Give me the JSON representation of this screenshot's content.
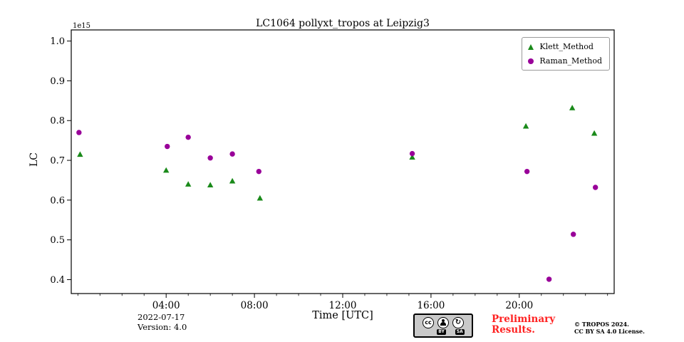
{
  "chart_data": {
    "type": "scatter",
    "title": "LC1064 pollyxt_tropos at Leipzig3",
    "xlabel": "Time [UTC]",
    "ylabel": "LC",
    "y_offset_label": "1e15",
    "xlim": [
      -0.3,
      24.3
    ],
    "ylim": [
      0.365,
      1.028
    ],
    "grid": false,
    "legend_position": "upper right",
    "x_major_ticks": [
      {
        "hour": 4,
        "label": "04:00"
      },
      {
        "hour": 8,
        "label": "08:00"
      },
      {
        "hour": 12,
        "label": "12:00"
      },
      {
        "hour": 16,
        "label": "16:00"
      },
      {
        "hour": 20,
        "label": "20:00"
      }
    ],
    "x_minor_tick_every_hours": 1,
    "y_ticks": [
      {
        "value": 0.4,
        "label": "0.4"
      },
      {
        "value": 0.5,
        "label": "0.5"
      },
      {
        "value": 0.6,
        "label": "0.6"
      },
      {
        "value": 0.7,
        "label": "0.7"
      },
      {
        "value": 0.8,
        "label": "0.8"
      },
      {
        "value": 0.9,
        "label": "0.9"
      },
      {
        "value": 1.0,
        "label": "1.0"
      }
    ],
    "series": [
      {
        "name": "Klett_Method",
        "marker": "triangle",
        "color": "#1a8a1a",
        "points": [
          {
            "x": 0.1,
            "y": 0.715
          },
          {
            "x": 4.0,
            "y": 0.675
          },
          {
            "x": 5.0,
            "y": 0.64
          },
          {
            "x": 6.0,
            "y": 0.638
          },
          {
            "x": 7.0,
            "y": 0.648
          },
          {
            "x": 8.25,
            "y": 0.605
          },
          {
            "x": 15.15,
            "y": 0.708
          },
          {
            "x": 20.3,
            "y": 0.786
          },
          {
            "x": 22.4,
            "y": 0.832
          },
          {
            "x": 23.4,
            "y": 0.768
          }
        ]
      },
      {
        "name": "Raman_Method",
        "marker": "circle",
        "color": "#990099",
        "points": [
          {
            "x": 0.05,
            "y": 0.77
          },
          {
            "x": 4.05,
            "y": 0.735
          },
          {
            "x": 5.0,
            "y": 0.758
          },
          {
            "x": 6.0,
            "y": 0.706
          },
          {
            "x": 7.0,
            "y": 0.716
          },
          {
            "x": 8.2,
            "y": 0.672
          },
          {
            "x": 15.15,
            "y": 0.717
          },
          {
            "x": 20.35,
            "y": 0.672
          },
          {
            "x": 21.35,
            "y": 0.401
          },
          {
            "x": 22.45,
            "y": 0.514
          },
          {
            "x": 23.45,
            "y": 0.632
          }
        ]
      }
    ]
  },
  "footer": {
    "date": "2022-07-17",
    "version": "Version: 4.0",
    "preliminary_line1": "Preliminary",
    "preliminary_line2": "Results.",
    "copyright_line1": "© TROPOS 2024.",
    "copyright_line2": "CC BY SA 4.0 License.",
    "cc_badge": {
      "cc_text": "cc",
      "by_label": "BY",
      "sa_label": "SA",
      "sa_symbol": "↻"
    }
  },
  "colors": {
    "klett_green": "#1a8a1a",
    "raman_purple": "#990099",
    "preliminary_red": "#ff2222",
    "axis": "#000000"
  }
}
